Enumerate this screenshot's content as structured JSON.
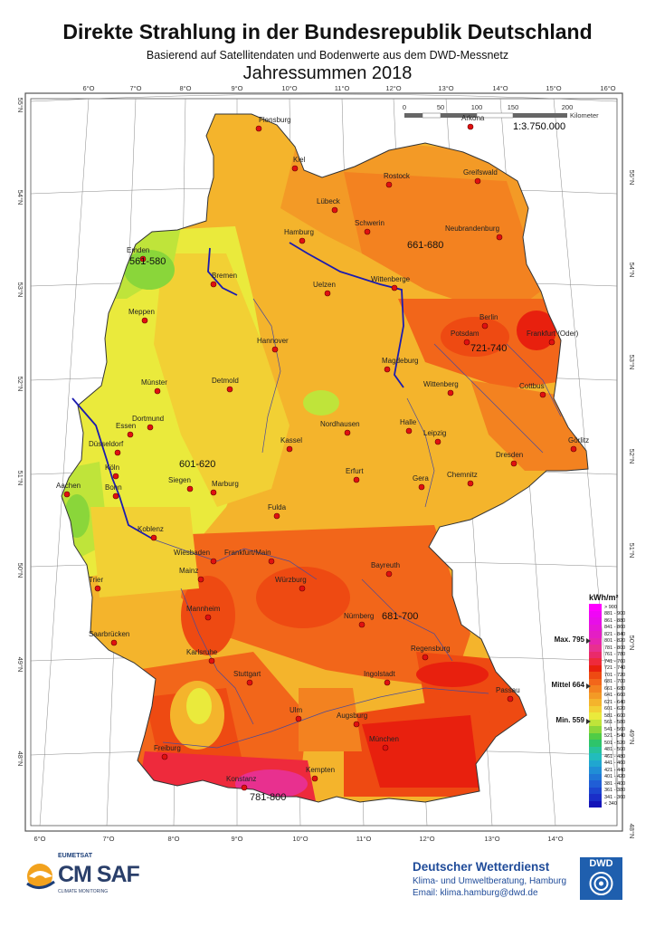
{
  "header": {
    "title": "Direkte Strahlung in der Bundesrepublik Deutschland",
    "subtitle": "Basierend auf Satellitendaten und Bodenwerte aus dem DWD-Messnetz",
    "period": "Jahressummen 2018"
  },
  "map": {
    "scale_text": "1:3.750.000",
    "scale_unit": "Kilometer",
    "scale_ticks": [
      "0",
      "50",
      "100",
      "150",
      "200"
    ],
    "lon_ticks_top": [
      "6°O",
      "7°O",
      "8°O",
      "9°O",
      "10°O",
      "11°O",
      "12°O",
      "13°O",
      "14°O",
      "15°O",
      "16°O"
    ],
    "lon_ticks_bottom": [
      "6°O",
      "7°O",
      "8°O",
      "9°O",
      "10°O",
      "11°O",
      "12°O",
      "13°O",
      "14°O"
    ],
    "lat_ticks": [
      "55°N",
      "54°N",
      "53°N",
      "52°N",
      "51°N",
      "50°N",
      "49°N",
      "48°N"
    ],
    "zone_labels": [
      "561-580",
      "661-680",
      "721-740",
      "601-620",
      "681-700",
      "781-800"
    ],
    "cities": [
      "Flensburg",
      "Kiel",
      "Rostock",
      "Greifswald",
      "Lübeck",
      "Schwerin",
      "Hamburg",
      "Neubrandenburg",
      "Emden",
      "Bremen",
      "Uelzen",
      "Wittenberge",
      "Berlin",
      "Potsdam",
      "Frankfurt (Oder)",
      "Meppen",
      "Hannover",
      "Magdeburg",
      "Münster",
      "Detmold",
      "Wittenberg",
      "Cottbus",
      "Dortmund",
      "Essen",
      "Nordhausen",
      "Halle",
      "Leipzig",
      "Düsseldorf",
      "Kassel",
      "Görlitz",
      "Köln",
      "Bonn",
      "Erfurt",
      "Gera",
      "Chemnitz",
      "Dresden",
      "Aachen",
      "Siegen",
      "Marburg",
      "Fulda",
      "Koblenz",
      "Wiesbaden",
      "Frankfurt/Main",
      "Mainz",
      "Bayreuth",
      "Würzburg",
      "Trier",
      "Mannheim",
      "Nürnberg",
      "Saarbrücken",
      "Karlsruhe",
      "Regensburg",
      "Ingolstadt",
      "Stuttgart",
      "Passau",
      "Ulm",
      "Augsburg",
      "München",
      "Freiburg",
      "Konstanz",
      "Kempten",
      "Arkona"
    ]
  },
  "legend": {
    "unit": "kWh/m²",
    "classes": [
      {
        "label": "> 900",
        "color": "#ff00ff"
      },
      {
        "label": "881 - 900",
        "color": "#f006f6"
      },
      {
        "label": "861 - 880",
        "color": "#e80ee8"
      },
      {
        "label": "841 - 860",
        "color": "#e616d6"
      },
      {
        "label": "821 - 840",
        "color": "#e41ec4"
      },
      {
        "label": "801 - 820",
        "color": "#e626ae"
      },
      {
        "label": "781 - 800",
        "color": "#e8308f"
      },
      {
        "label": "761 - 780",
        "color": "#ea2a6a"
      },
      {
        "label": "741 - 760",
        "color": "#ee2a3c"
      },
      {
        "label": "721 - 740",
        "color": "#e8200e"
      },
      {
        "label": "701 - 720",
        "color": "#ee4a12"
      },
      {
        "label": "681 - 700",
        "color": "#f2661a"
      },
      {
        "label": "661 - 680",
        "color": "#f38220"
      },
      {
        "label": "641 - 660",
        "color": "#f39a26"
      },
      {
        "label": "621 - 640",
        "color": "#f4b42c"
      },
      {
        "label": "601 - 620",
        "color": "#f2d034"
      },
      {
        "label": "581 - 600",
        "color": "#eaea3c"
      },
      {
        "label": "561 - 580",
        "color": "#bfe43a"
      },
      {
        "label": "541 - 560",
        "color": "#8ad63a"
      },
      {
        "label": "521 - 540",
        "color": "#50cc46"
      },
      {
        "label": "501 - 520",
        "color": "#2ec46a"
      },
      {
        "label": "481 - 500",
        "color": "#26c29a"
      },
      {
        "label": "461 - 480",
        "color": "#22bcbc"
      },
      {
        "label": "441 - 460",
        "color": "#20a6d0"
      },
      {
        "label": "421 - 440",
        "color": "#208ed6"
      },
      {
        "label": "401 - 420",
        "color": "#2076d6"
      },
      {
        "label": "381 - 400",
        "color": "#205ed6"
      },
      {
        "label": "361 - 380",
        "color": "#1c46d0"
      },
      {
        "label": "341 - 360",
        "color": "#1a2ec8"
      },
      {
        "label": "< 340",
        "color": "#1414b8"
      }
    ],
    "markers": [
      {
        "label": "Max. 795",
        "value": 795
      },
      {
        "label": "Mittel 664",
        "value": 664
      },
      {
        "label": "Min. 559",
        "value": 559
      }
    ]
  },
  "footer": {
    "eumetsat": "EUMETSAT",
    "cmsaf": "CM SAF",
    "climate": "CLIMATE MONITORING",
    "dwd_name": "Deutscher Wetterdienst",
    "dwd_line1": "Klima- und Umweltberatung, Hamburg",
    "dwd_line2": "Email: klima.hamburg@dwd.de",
    "dwd_logo": "DWD"
  }
}
